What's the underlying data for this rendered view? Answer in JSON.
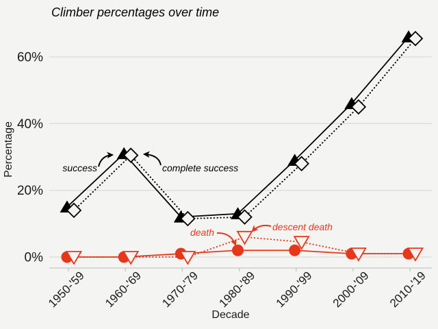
{
  "title": "Climber percentages over time",
  "colors": {
    "background": "#f4f4f2",
    "gridline": "#dcdcdc",
    "axis": "#c3c3c3",
    "text": "#1a1a1a",
    "black_series": "#000000",
    "red_series": "#e8361a"
  },
  "chart_data": {
    "type": "line",
    "title": "Climber percentages over time",
    "xlabel": "Decade",
    "ylabel": "Percentage",
    "categories": [
      "1950-'59",
      "1960-'69",
      "1970-'79",
      "1980-'89",
      "1990-'99",
      "2000-'09",
      "2010-'19"
    ],
    "y_ticks": [
      0,
      20,
      40,
      60
    ],
    "y_tick_labels": [
      "0%",
      "20%",
      "40%",
      "60%"
    ],
    "ylim": [
      -3,
      70
    ],
    "grid": "horizontal-major-only",
    "legend_position": "none (inline annotations with arrows)",
    "series": [
      {
        "name": "success",
        "marker": "filled-triangle-up",
        "line": "solid",
        "color": "#000000",
        "values": [
          15,
          31,
          12,
          13,
          29,
          46,
          66
        ]
      },
      {
        "name": "complete success",
        "marker": "open-diamond",
        "line": "dotted",
        "color": "#000000",
        "values": [
          14,
          30.5,
          11.5,
          12,
          28,
          45,
          65.5
        ]
      },
      {
        "name": "death",
        "marker": "filled-circle",
        "line": "solid",
        "color": "#e8361a",
        "values": [
          0,
          0,
          1,
          2,
          2,
          1,
          1
        ]
      },
      {
        "name": "descent death",
        "marker": "open-triangle-down",
        "line": "dotted",
        "color": "#e8361a",
        "values": [
          0,
          0,
          0,
          6,
          4.5,
          1,
          1
        ]
      }
    ],
    "annotations": [
      {
        "label": "success",
        "color": "#000000",
        "points_to": "1960-'69 success point"
      },
      {
        "label": "complete success",
        "color": "#000000",
        "points_to": "1960-'69 complete success point"
      },
      {
        "label": "death",
        "color": "#e8361a",
        "points_to": "1980-'89 death point"
      },
      {
        "label": "descent death",
        "color": "#e8361a",
        "points_to": "1980-'89 descent death point"
      }
    ]
  }
}
